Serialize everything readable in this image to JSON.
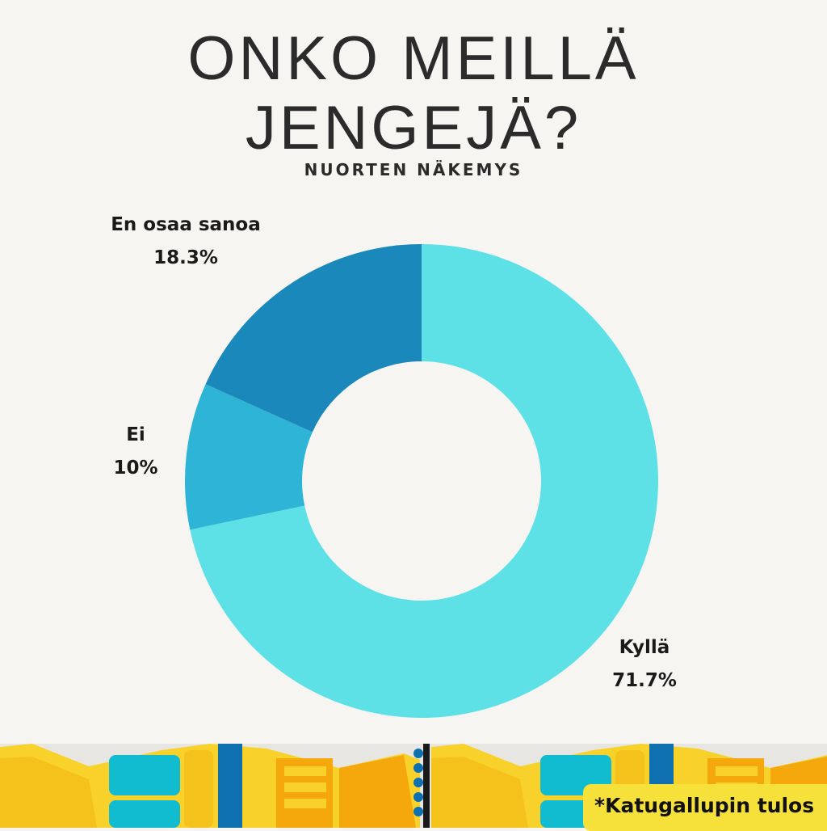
{
  "header": {
    "title_line1": "ONKO MEILLÄ",
    "title_line2": "JENGEJÄ?",
    "subtitle": "NUORTEN NÄKEMYS"
  },
  "footer": {
    "note": "*Katugallupin tulos"
  },
  "colors": {
    "background": "#f6f5f2",
    "kylla": "#5de1e6",
    "ei": "#2db4d6",
    "en_osaa_sanoa": "#1a88ba",
    "footer_yellow": "#f8d22a",
    "footer_blue": "#0f70b0",
    "footer_teal": "#12bcd0",
    "footer_orange": "#f4a80c"
  },
  "chart_data": {
    "type": "pie",
    "title": "ONKO MEILLÄ JENGEJÄ?",
    "subtitle": "NUORTEN NÄKEMYS",
    "donut": true,
    "slices": [
      {
        "name": "Kyllä",
        "value": 71.7,
        "label": "71.7%",
        "color": "#5de1e6"
      },
      {
        "name": "Ei",
        "value": 10,
        "label": "10%",
        "color": "#2db4d6"
      },
      {
        "name": "En osaa sanoa",
        "value": 18.3,
        "label": "18.3%",
        "color": "#1a88ba"
      }
    ]
  }
}
